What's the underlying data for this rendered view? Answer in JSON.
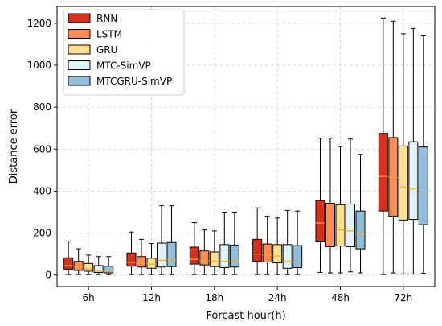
{
  "chart_data": {
    "type": "box",
    "xlabel": "Forcast hour(h)",
    "ylabel": "Distance error",
    "categories": [
      "6h",
      "12h",
      "18h",
      "24h",
      "48h",
      "72h"
    ],
    "ylim": [
      -55,
      1280
    ],
    "yticks": [
      0,
      200,
      400,
      600,
      800,
      1000,
      1200
    ],
    "grid": true,
    "legend_position": "top-left",
    "median_color": "#f5a623",
    "series": [
      {
        "name": "RNN",
        "color": "#d7301f",
        "boxes": [
          {
            "whislo": 2,
            "q1": 28,
            "med": 45,
            "q3": 82,
            "whishi": 162
          },
          {
            "whislo": 2,
            "q1": 42,
            "med": 60,
            "q3": 105,
            "whishi": 205
          },
          {
            "whislo": 2,
            "q1": 52,
            "med": 75,
            "q3": 133,
            "whishi": 250
          },
          {
            "whislo": 2,
            "q1": 65,
            "med": 100,
            "q3": 170,
            "whishi": 320
          },
          {
            "whislo": 12,
            "q1": 158,
            "med": 248,
            "q3": 355,
            "whishi": 652
          },
          {
            "whislo": 2,
            "q1": 305,
            "med": 470,
            "q3": 675,
            "whishi": 1225
          }
        ]
      },
      {
        "name": "LSTM",
        "color": "#fc8d59",
        "boxes": [
          {
            "whislo": 2,
            "q1": 22,
            "med": 38,
            "q3": 65,
            "whishi": 125
          },
          {
            "whislo": 2,
            "q1": 38,
            "med": 55,
            "q3": 88,
            "whishi": 170
          },
          {
            "whislo": 2,
            "q1": 48,
            "med": 68,
            "q3": 115,
            "whishi": 215
          },
          {
            "whislo": 2,
            "q1": 62,
            "med": 95,
            "q3": 148,
            "whishi": 280
          },
          {
            "whislo": 10,
            "q1": 135,
            "med": 238,
            "q3": 342,
            "whishi": 652
          },
          {
            "whislo": 10,
            "q1": 280,
            "med": 465,
            "q3": 655,
            "whishi": 1210
          }
        ]
      },
      {
        "name": "GRU",
        "color": "#fee090",
        "boxes": [
          {
            "whislo": 2,
            "q1": 18,
            "med": 30,
            "q3": 55,
            "whishi": 95
          },
          {
            "whislo": 2,
            "q1": 32,
            "med": 52,
            "q3": 80,
            "whishi": 150
          },
          {
            "whislo": 2,
            "q1": 40,
            "med": 65,
            "q3": 110,
            "whishi": 210
          },
          {
            "whislo": 2,
            "q1": 58,
            "med": 90,
            "q3": 145,
            "whishi": 272
          },
          {
            "whislo": 10,
            "q1": 138,
            "med": 215,
            "q3": 335,
            "whishi": 612
          },
          {
            "whislo": 5,
            "q1": 262,
            "med": 420,
            "q3": 615,
            "whishi": 1150
          }
        ]
      },
      {
        "name": "MTC-SimVP",
        "color": "#e0f3f8",
        "boxes": [
          {
            "whislo": 2,
            "q1": 12,
            "med": 18,
            "q3": 45,
            "whishi": 88
          },
          {
            "whislo": 2,
            "q1": 38,
            "med": 70,
            "q3": 152,
            "whishi": 330
          },
          {
            "whislo": 2,
            "q1": 35,
            "med": 65,
            "q3": 145,
            "whishi": 300
          },
          {
            "whislo": 2,
            "q1": 32,
            "med": 65,
            "q3": 145,
            "whishi": 308
          },
          {
            "whislo": 15,
            "q1": 135,
            "med": 210,
            "q3": 338,
            "whishi": 648
          },
          {
            "whislo": 5,
            "q1": 265,
            "med": 410,
            "q3": 635,
            "whishi": 1175
          }
        ]
      },
      {
        "name": "MTCGRU-SimVP",
        "color": "#91bfdb",
        "boxes": [
          {
            "whislo": 2,
            "q1": 10,
            "med": 15,
            "q3": 42,
            "whishi": 88
          },
          {
            "whislo": 2,
            "q1": 40,
            "med": 72,
            "q3": 155,
            "whishi": 330
          },
          {
            "whislo": 2,
            "q1": 38,
            "med": 68,
            "q3": 143,
            "whishi": 300
          },
          {
            "whislo": 2,
            "q1": 35,
            "med": 62,
            "q3": 140,
            "whishi": 305
          },
          {
            "whislo": 10,
            "q1": 125,
            "med": 195,
            "q3": 305,
            "whishi": 575
          },
          {
            "whislo": 8,
            "q1": 240,
            "med": 395,
            "q3": 610,
            "whishi": 1140
          }
        ]
      }
    ]
  }
}
